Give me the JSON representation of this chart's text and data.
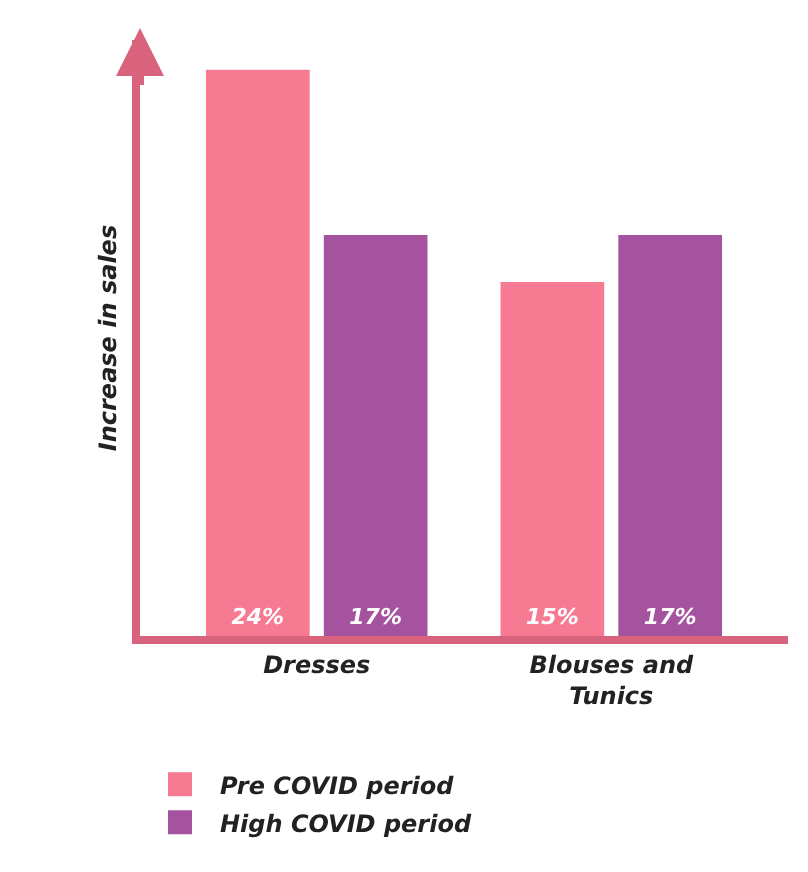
{
  "chart_data": {
    "type": "bar",
    "ylabel": "Increase in sales",
    "categories": [
      "Dresses",
      "Blouses and Tunics"
    ],
    "series": [
      {
        "name": "Pre COVID period",
        "color": "#f67a92",
        "values": [
          24,
          15
        ],
        "value_labels": [
          "24%",
          "15%"
        ]
      },
      {
        "name": "High COVID period",
        "color": "#a5539f",
        "values": [
          17,
          17
        ],
        "value_labels": [
          "17%",
          "17%"
        ]
      }
    ],
    "tick_labels": "x",
    "grid": false,
    "legend": "bottom"
  }
}
